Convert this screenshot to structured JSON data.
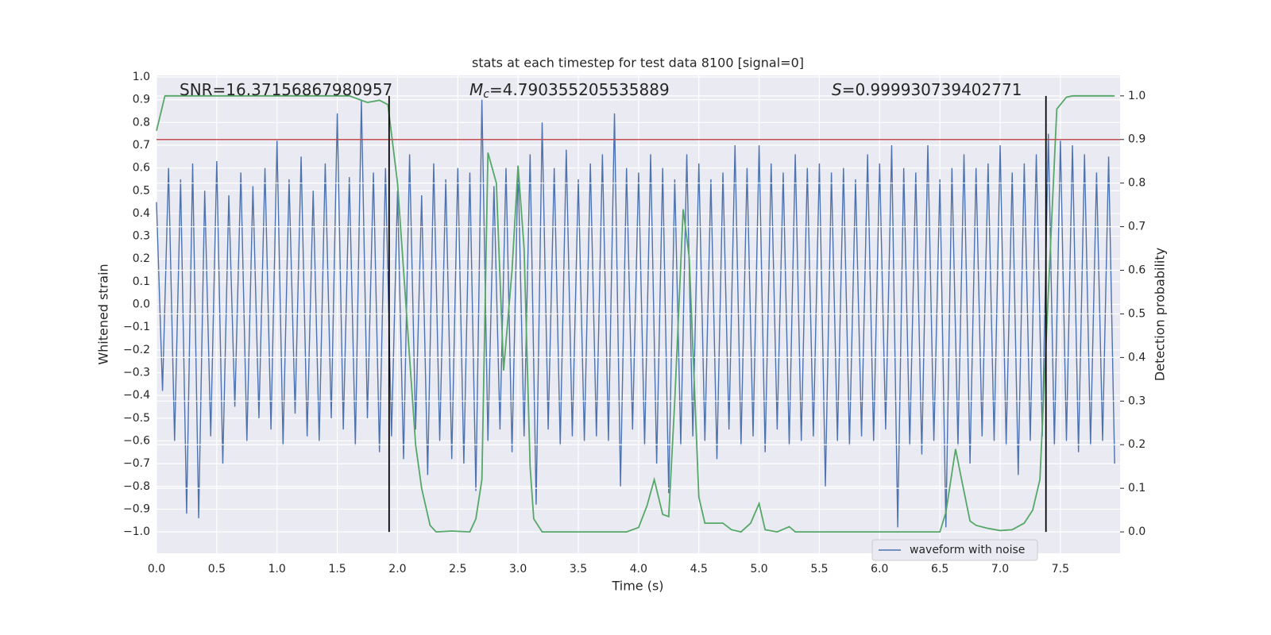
{
  "chart_data": {
    "type": "line",
    "title": "stats at each timestep for test data 8100 [signal=0]",
    "xlabel": "Time (s)",
    "ylabel": "Whitened strain",
    "y2label": "Detection probability",
    "annotations": [
      {
        "text": "SNR=16.37156867980957"
      },
      {
        "symbol": "M",
        "subscript": "c",
        "text": "=4.790355205535889"
      },
      {
        "symbol": "S",
        "text": "=0.999930739402771"
      }
    ],
    "xlim": [
      0,
      7.995
    ],
    "xticks": [
      {
        "value": 0,
        "label": "0.0"
      },
      {
        "value": 0.5,
        "label": "0.5"
      },
      {
        "value": 1,
        "label": "1.0"
      },
      {
        "value": 1.5,
        "label": "1.5"
      },
      {
        "value": 2,
        "label": "2.0"
      },
      {
        "value": 2.5,
        "label": "2.5"
      },
      {
        "value": 3,
        "label": "3.0"
      },
      {
        "value": 3.5,
        "label": "3.5"
      },
      {
        "value": 4,
        "label": "4.0"
      },
      {
        "value": 4.5,
        "label": "4.5"
      },
      {
        "value": 5,
        "label": "5.0"
      },
      {
        "value": 5.5,
        "label": "5.5"
      },
      {
        "value": 6,
        "label": "6.0"
      },
      {
        "value": 6.5,
        "label": "6.5"
      },
      {
        "value": 7,
        "label": "7.0"
      },
      {
        "value": 7.5,
        "label": "7.5"
      }
    ],
    "ylim": [
      -1.094,
      1.007
    ],
    "yticks": [
      {
        "value": -1,
        "label": "−1.0"
      },
      {
        "value": -0.9,
        "label": "−0.9"
      },
      {
        "value": -0.8,
        "label": "−0.8"
      },
      {
        "value": -0.7,
        "label": "−0.7"
      },
      {
        "value": -0.6,
        "label": "−0.6"
      },
      {
        "value": -0.5,
        "label": "−0.5"
      },
      {
        "value": -0.4,
        "label": "−0.4"
      },
      {
        "value": -0.3,
        "label": "−0.3"
      },
      {
        "value": -0.2,
        "label": "−0.2"
      },
      {
        "value": -0.1,
        "label": "−0.1"
      },
      {
        "value": 0,
        "label": "0.0"
      },
      {
        "value": 0.1,
        "label": "0.1"
      },
      {
        "value": 0.2,
        "label": "0.2"
      },
      {
        "value": 0.3,
        "label": "0.3"
      },
      {
        "value": 0.4,
        "label": "0.4"
      },
      {
        "value": 0.5,
        "label": "0.5"
      },
      {
        "value": 0.6,
        "label": "0.6"
      },
      {
        "value": 0.7,
        "label": "0.7"
      },
      {
        "value": 0.8,
        "label": "0.8"
      },
      {
        "value": 0.9,
        "label": "0.9"
      },
      {
        "value": 1,
        "label": "1.0"
      }
    ],
    "y2lim": [
      -0.049,
      1.047
    ],
    "y2ticks": [
      {
        "value": 0,
        "label": "0.0"
      },
      {
        "value": 0.1,
        "label": "0.1"
      },
      {
        "value": 0.2,
        "label": "0.2"
      },
      {
        "value": 0.3,
        "label": "0.3"
      },
      {
        "value": 0.4,
        "label": "0.4"
      },
      {
        "value": 0.5,
        "label": "0.5"
      },
      {
        "value": 0.6,
        "label": "0.6"
      },
      {
        "value": 0.7,
        "label": "0.7"
      },
      {
        "value": 0.8,
        "label": "0.8"
      },
      {
        "value": 0.9,
        "label": "0.9"
      },
      {
        "value": 1,
        "label": "1.0"
      }
    ],
    "grid": true,
    "legend": "lower right",
    "series": [
      {
        "name": "waveform with noise",
        "color": "#4c72b0",
        "x": [
          0,
          0.05,
          0.1,
          0.15,
          0.2,
          0.25,
          0.3,
          0.35,
          0.4,
          0.45,
          0.5,
          0.55,
          0.6,
          0.65,
          0.7,
          0.75,
          0.8,
          0.85,
          0.9,
          0.95,
          1,
          1.05,
          1.1,
          1.15,
          1.2,
          1.25,
          1.3,
          1.35,
          1.4,
          1.45,
          1.5,
          1.55,
          1.6,
          1.65,
          1.7,
          1.75,
          1.8,
          1.85,
          1.9,
          1.95,
          2,
          2.05,
          2.1,
          2.15,
          2.2,
          2.25,
          2.3,
          2.35,
          2.4,
          2.45,
          2.5,
          2.55,
          2.6,
          2.65,
          2.7,
          2.75,
          2.8,
          2.85,
          2.9,
          2.95,
          3,
          3.05,
          3.1,
          3.15,
          3.2,
          3.25,
          3.3,
          3.35,
          3.4,
          3.45,
          3.5,
          3.55,
          3.6,
          3.65,
          3.7,
          3.75,
          3.8,
          3.85,
          3.9,
          3.95,
          4,
          4.05,
          4.1,
          4.15,
          4.2,
          4.25,
          4.3,
          4.35,
          4.4,
          4.45,
          4.5,
          4.55,
          4.6,
          4.65,
          4.7,
          4.75,
          4.8,
          4.85,
          4.9,
          4.95,
          5,
          5.05,
          5.1,
          5.15,
          5.2,
          5.25,
          5.3,
          5.35,
          5.4,
          5.45,
          5.5,
          5.55,
          5.6,
          5.65,
          5.7,
          5.75,
          5.8,
          5.85,
          5.9,
          5.95,
          6,
          6.05,
          6.1,
          6.15,
          6.2,
          6.25,
          6.3,
          6.35,
          6.4,
          6.45,
          6.5,
          6.55,
          6.6,
          6.65,
          6.7,
          6.75,
          6.8,
          6.85,
          6.9,
          6.95,
          7,
          7.05,
          7.1,
          7.15,
          7.2,
          7.25,
          7.3,
          7.35,
          7.4,
          7.45,
          7.5,
          7.55,
          7.6,
          7.65,
          7.7,
          7.75,
          7.8,
          7.85,
          7.9,
          7.95
        ],
        "values": [
          0.45,
          -0.38,
          0.6,
          -0.6,
          0.55,
          -0.92,
          0.62,
          -0.94,
          0.5,
          -0.58,
          0.63,
          -0.7,
          0.48,
          -0.45,
          0.58,
          -0.6,
          0.52,
          -0.5,
          0.6,
          -0.55,
          0.72,
          -0.62,
          0.55,
          -0.48,
          0.65,
          -0.58,
          0.5,
          -0.6,
          0.62,
          -0.5,
          0.84,
          -0.55,
          0.56,
          -0.62,
          0.9,
          -0.5,
          0.58,
          -0.65,
          0.6,
          -0.58,
          0.5,
          -0.68,
          0.66,
          -0.55,
          0.48,
          -0.75,
          0.62,
          -0.6,
          0.55,
          -0.68,
          0.6,
          -0.7,
          0.58,
          -0.82,
          0.9,
          -0.6,
          0.52,
          -0.55,
          0.6,
          -0.65,
          0.61,
          -0.58,
          0.66,
          -0.88,
          0.8,
          -0.55,
          0.6,
          -0.62,
          0.68,
          -0.58,
          0.55,
          -0.6,
          0.62,
          -0.58,
          0.66,
          -0.6,
          0.84,
          -0.8,
          0.6,
          -0.55,
          0.58,
          -0.62,
          0.66,
          -0.7,
          0.6,
          -0.83,
          0.55,
          -0.62,
          0.66,
          -0.58,
          0.62,
          -0.6,
          0.55,
          -0.68,
          0.58,
          -0.55,
          0.7,
          -0.62,
          0.6,
          -0.58,
          0.7,
          -0.65,
          0.62,
          -0.55,
          0.58,
          -0.62,
          0.66,
          -0.6,
          0.6,
          -0.58,
          0.62,
          -0.8,
          0.58,
          -0.6,
          0.6,
          -0.62,
          0.55,
          -0.58,
          0.66,
          -0.6,
          0.62,
          -0.55,
          0.7,
          -0.98,
          0.6,
          -0.62,
          0.58,
          -0.66,
          0.7,
          -0.6,
          0.55,
          -0.98,
          0.6,
          -0.62,
          0.66,
          -0.7,
          0.6,
          -0.58,
          0.62,
          -0.6,
          0.7,
          -0.62,
          0.58,
          -0.75,
          0.62,
          -0.6,
          0.66,
          -0.58,
          0.75,
          -0.62,
          0.72,
          -0.6,
          0.7,
          -0.65,
          0.66,
          -0.62,
          0.58,
          -0.6,
          0.65,
          -0.7
        ]
      },
      {
        "color": "#55a868",
        "axis": "y2",
        "x": [
          0,
          0.07,
          0.3,
          1,
          1.6,
          1.75,
          1.85,
          1.92,
          2,
          2.1,
          2.15,
          2.2,
          2.27,
          2.32,
          2.45,
          2.6,
          2.65,
          2.7,
          2.75,
          2.82,
          2.88,
          2.95,
          3,
          3.05,
          3.1,
          3.13,
          3.2,
          3.5,
          3.9,
          4,
          4.07,
          4.13,
          4.2,
          4.25,
          4.3,
          4.37,
          4.42,
          4.5,
          4.55,
          4.7,
          4.77,
          4.85,
          4.93,
          5,
          5.05,
          5.15,
          5.25,
          5.3,
          6,
          6.5,
          6.55,
          6.63,
          6.68,
          6.75,
          6.8,
          6.9,
          7,
          7.1,
          7.2,
          7.27,
          7.33,
          7.4,
          7.47,
          7.55,
          7.6,
          7.95
        ],
        "values": [
          0.92,
          1,
          1,
          1,
          1,
          0.985,
          0.99,
          0.98,
          0.8,
          0.4,
          0.2,
          0.1,
          0.015,
          0,
          0.002,
          0,
          0.03,
          0.12,
          0.87,
          0.8,
          0.37,
          0.6,
          0.84,
          0.65,
          0.15,
          0.03,
          0,
          0,
          0,
          0.01,
          0.06,
          0.12,
          0.04,
          0.035,
          0.3,
          0.74,
          0.63,
          0.08,
          0.02,
          0.02,
          0.005,
          0,
          0.02,
          0.065,
          0.005,
          0,
          0.012,
          0,
          0,
          0,
          0.045,
          0.19,
          0.12,
          0.025,
          0.015,
          0.008,
          0.003,
          0.005,
          0.02,
          0.05,
          0.12,
          0.55,
          0.97,
          0.997,
          1,
          1
        ]
      }
    ],
    "hlines": [
      {
        "value": 0.9,
        "axis": "y2",
        "color": "#c44e52"
      }
    ],
    "vlines": [
      {
        "value": 1.93,
        "color": "#000000"
      },
      {
        "value": 7.38,
        "color": "#000000"
      }
    ]
  }
}
